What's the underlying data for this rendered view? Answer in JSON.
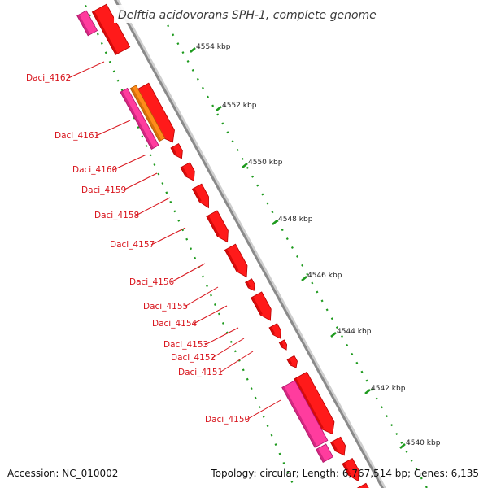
{
  "title": "Delftia acidovorans SPH-1, complete genome",
  "footer": {
    "accession": "Accession: NC_010002",
    "summary": "Topology: circular; Length: 6,767,514 bp; Genes: 6,135"
  },
  "ruler": {
    "ticks": [
      {
        "label": "4554 kbp",
        "pos_kbp": 4554
      },
      {
        "label": "4552 kbp",
        "pos_kbp": 4552
      },
      {
        "label": "4550 kbp",
        "pos_kbp": 4550
      },
      {
        "label": "4548 kbp",
        "pos_kbp": 4548
      },
      {
        "label": "4546 kbp",
        "pos_kbp": 4546
      },
      {
        "label": "4544 kbp",
        "pos_kbp": 4544
      },
      {
        "label": "4542 kbp",
        "pos_kbp": 4542
      },
      {
        "label": "4540 kbp",
        "pos_kbp": 4540
      }
    ]
  },
  "genes": [
    {
      "label": "Daci_4162"
    },
    {
      "label": "Daci_4161"
    },
    {
      "label": "Daci_4160"
    },
    {
      "label": "Daci_4159"
    },
    {
      "label": "Daci_4158"
    },
    {
      "label": "Daci_4157"
    },
    {
      "label": "Daci_4156"
    },
    {
      "label": "Daci_4155"
    },
    {
      "label": "Daci_4154"
    },
    {
      "label": "Daci_4153"
    },
    {
      "label": "Daci_4152"
    },
    {
      "label": "Daci_4151"
    },
    {
      "label": "Daci_4150"
    }
  ],
  "colors": {
    "gene_cds": "#ff1a1a",
    "gene_cds_dark": "#b80000",
    "feature_pink": "#ff3c9e",
    "feature_orange": "#ff8c1a",
    "backbone": "#8a8a8a",
    "ruler_dots": "#1e9a1e",
    "label_text": "#d8141c"
  }
}
